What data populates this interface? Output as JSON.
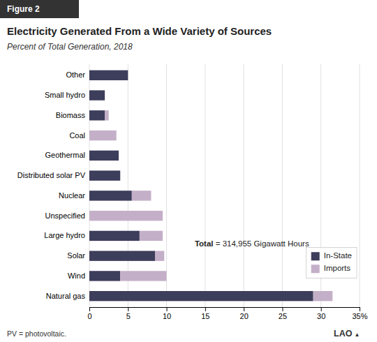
{
  "chart_data": {
    "type": "bar",
    "orientation": "horizontal",
    "stacked": true,
    "title": "Electricity Generated From a Wide Variety of Sources",
    "subtitle": "Percent of Total Generation, 2018",
    "figure_label": "Figure 2",
    "footnote": "PV = photovoltaic.",
    "logo": "LAO",
    "logo_mark": "▲",
    "annotations": [
      "Total",
      "= 314,955 Gigawatt Hours"
    ],
    "categories": [
      "Natural gas",
      "Wind",
      "Solar",
      "Large hydro",
      "Unspecified",
      "Nuclear",
      "Distributed solar PV",
      "Geothermal",
      "Coal",
      "Biomass",
      "Small hydro",
      "Other"
    ],
    "series": [
      {
        "name": "In-State",
        "color": "#3d3d5c",
        "values": [
          29.0,
          4.0,
          8.5,
          6.5,
          0.0,
          5.5,
          4.0,
          3.8,
          0.0,
          2.0,
          2.0,
          5.0
        ]
      },
      {
        "name": "Imports",
        "color": "#c4afc8",
        "values": [
          2.5,
          6.0,
          1.2,
          3.0,
          9.5,
          2.5,
          0.0,
          0.0,
          3.5,
          0.5,
          0.0,
          0.0
        ]
      }
    ],
    "xlim": [
      0,
      35
    ],
    "xticks": [
      0,
      5,
      10,
      15,
      20,
      25,
      30,
      {
        "value": 35,
        "label": "35%"
      }
    ],
    "grid": true,
    "legend": "lower right"
  }
}
